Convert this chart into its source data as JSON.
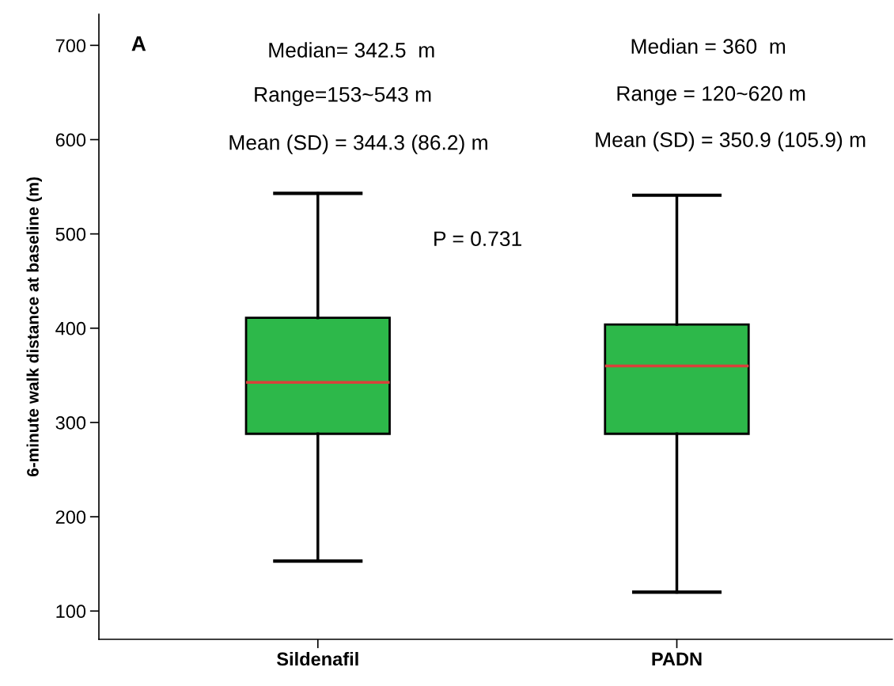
{
  "chart_data": {
    "type": "box",
    "ylabel": "6-minute walk distance at baseline (m)",
    "categories": [
      "Sildenafil",
      "PADN"
    ],
    "boxes": [
      {
        "low": 153,
        "q1": 288,
        "median": 342.5,
        "q3": 411,
        "high": 543
      },
      {
        "low": 120,
        "q1": 288,
        "median": 360,
        "q3": 404,
        "high": 541
      }
    ],
    "color": "#2db84a",
    "ylim": [
      70,
      733
    ],
    "yticks": [
      100,
      200,
      300,
      400,
      500,
      600,
      700
    ],
    "grid": false,
    "annotations": [
      "A",
      "Median= 342.5  m",
      "Range=153~543 m",
      "Mean (SD) = 344.3 (86.2) m",
      "Median = 360  m",
      "Range = 120~620 m",
      "Mean (SD) = 350.9 (105.9) m",
      "P = 0.731"
    ]
  }
}
